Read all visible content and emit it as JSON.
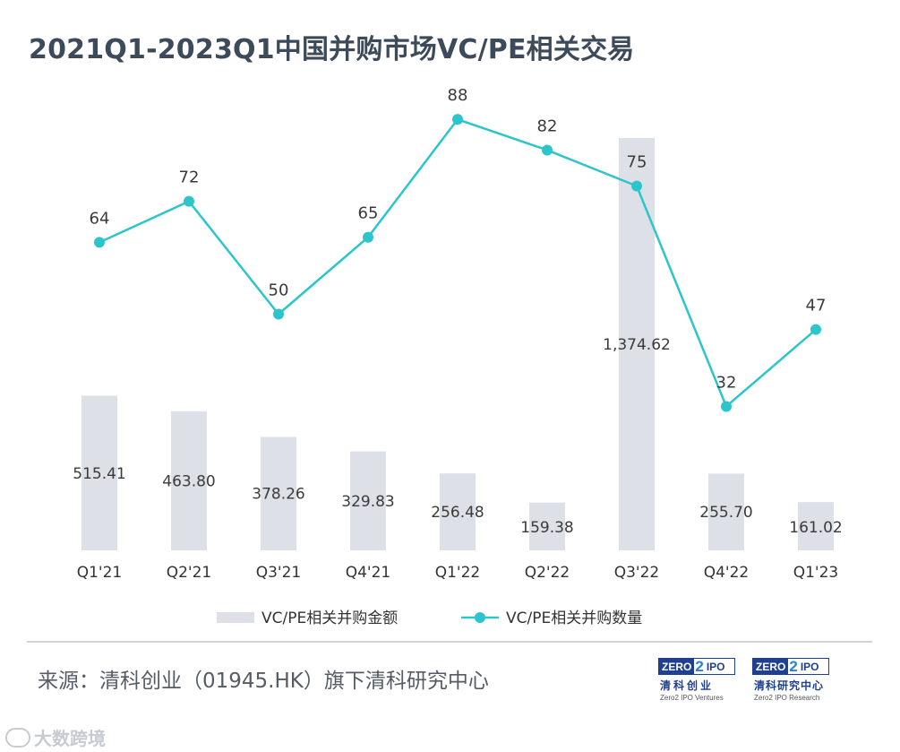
{
  "title": "2021Q1-2023Q1中国并购市场VC/PE相关交易",
  "chart_data": {
    "type": "bar+line",
    "categories": [
      "Q1'21",
      "Q2'21",
      "Q3'21",
      "Q4'21",
      "Q1'22",
      "Q2'22",
      "Q3'22",
      "Q4'22",
      "Q1'23"
    ],
    "series": [
      {
        "name": "VC/PE相关并购金额",
        "type": "bar",
        "values": [
          515.41,
          463.8,
          378.26,
          329.83,
          256.48,
          159.38,
          1374.62,
          255.7,
          161.02
        ],
        "labels": [
          "515.41",
          "463.80",
          "378.26",
          "329.83",
          "256.48",
          "159.38",
          "1,374.62",
          "255.70",
          "161.02"
        ],
        "color": "#dde1e7"
      },
      {
        "name": "VC/PE相关并购数量",
        "type": "line",
        "values": [
          64,
          72,
          50,
          65,
          88,
          82,
          75,
          32,
          47
        ],
        "labels": [
          "64",
          "72",
          "50",
          "65",
          "88",
          "82",
          "75",
          "32",
          "47"
        ],
        "color": "#2cc5cc"
      }
    ],
    "legend_position": "bottom",
    "grid": false
  },
  "footer": {
    "source": "来源：清科创业（01945.HK）旗下清科研究中心",
    "logo_left": {
      "mark_left": "ZERO",
      "mark_mid": "2",
      "mark_right": "IPO",
      "cn": "清科创业",
      "en": "Zero2 IPO Ventures"
    },
    "logo_right": {
      "mark_left": "ZERO",
      "mark_mid": "2",
      "mark_right": "IPO",
      "cn": "清科研究中心",
      "en": "Zero2 IPO Research"
    },
    "watermark": "大数跨境"
  }
}
